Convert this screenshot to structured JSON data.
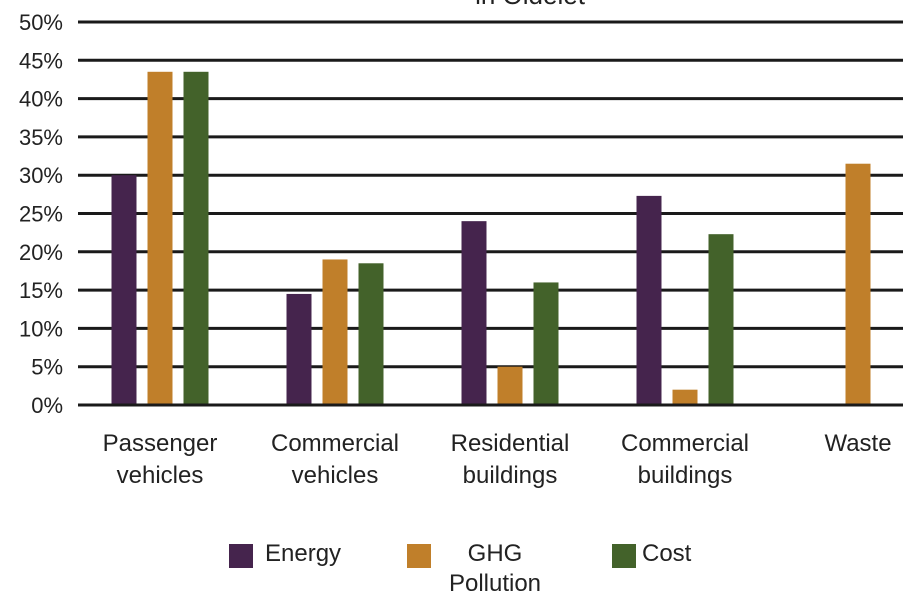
{
  "chart_data": {
    "type": "bar",
    "title": "in Oldelet",
    "categories": [
      [
        "Passenger",
        "vehicles"
      ],
      [
        "Commercial",
        "vehicles"
      ],
      [
        "Residential",
        "buildings"
      ],
      [
        "Commercial",
        "buildings"
      ],
      [
        "Waste"
      ]
    ],
    "y_ticks": [
      "0%",
      "5%",
      "10%",
      "15%",
      "20%",
      "25%",
      "30%",
      "35%",
      "40%",
      "45%",
      "50%"
    ],
    "ylim": [
      0,
      50
    ],
    "grid": true,
    "legend_position": "bottom",
    "series": [
      {
        "name": "Energy",
        "color": "#45244d",
        "values": [
          30,
          14.5,
          24,
          27.3,
          null
        ]
      },
      {
        "name": "GHG Pollution",
        "color": "#c07f2a",
        "values": [
          43.5,
          19,
          5,
          2,
          31.5
        ]
      },
      {
        "name": "Cost",
        "color": "#43622a",
        "values": [
          43.5,
          18.5,
          16,
          22.3,
          null
        ]
      }
    ]
  },
  "legend": {
    "energy": "Energy",
    "ghg_line1": "GHG",
    "ghg_line2": "Pollution",
    "cost": "Cost"
  }
}
